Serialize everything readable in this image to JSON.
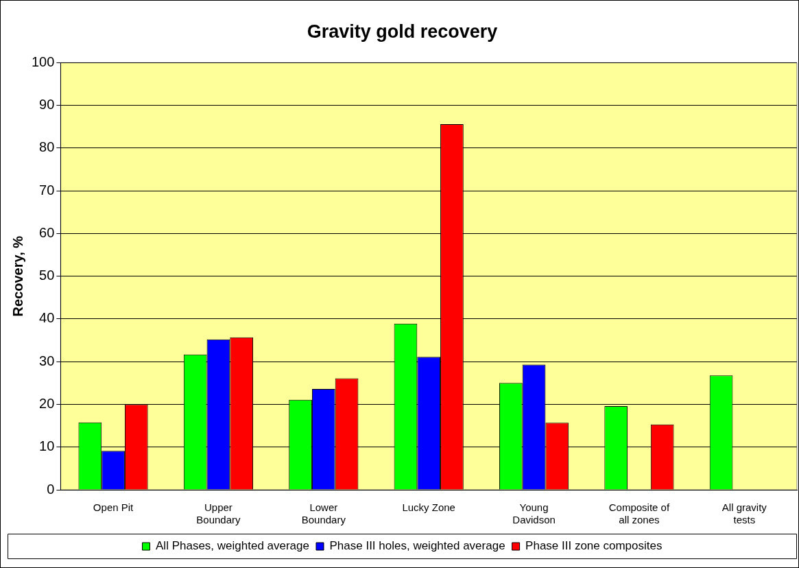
{
  "chart_data": {
    "type": "bar",
    "title": "Gravity gold recovery",
    "ylabel": "Recovery, %",
    "categories": [
      "Open Pit",
      "Upper Boundary",
      "Lower Boundary",
      "Lucky Zone",
      "Young Davidson",
      "Composite of all zones",
      "All gravity tests"
    ],
    "series": [
      {
        "name": "All Phases, weighted average",
        "color": "#00ff00",
        "values": [
          15.8,
          31.7,
          21.1,
          38.9,
          25.0,
          19.6,
          26.8
        ]
      },
      {
        "name": "Phase III holes, weighted average",
        "color": "#0000ff",
        "values": [
          9.1,
          35.2,
          23.6,
          31.1,
          29.3,
          null,
          null
        ]
      },
      {
        "name": "Phase III zone composites",
        "color": "#ff0000",
        "values": [
          20.0,
          35.7,
          26.1,
          85.6,
          15.7,
          15.3,
          null
        ]
      }
    ],
    "ylim": [
      0,
      100
    ],
    "yticks": [
      0,
      10,
      20,
      30,
      40,
      50,
      60,
      70,
      80,
      90,
      100
    ],
    "grid": "y",
    "legend": "bottom"
  }
}
